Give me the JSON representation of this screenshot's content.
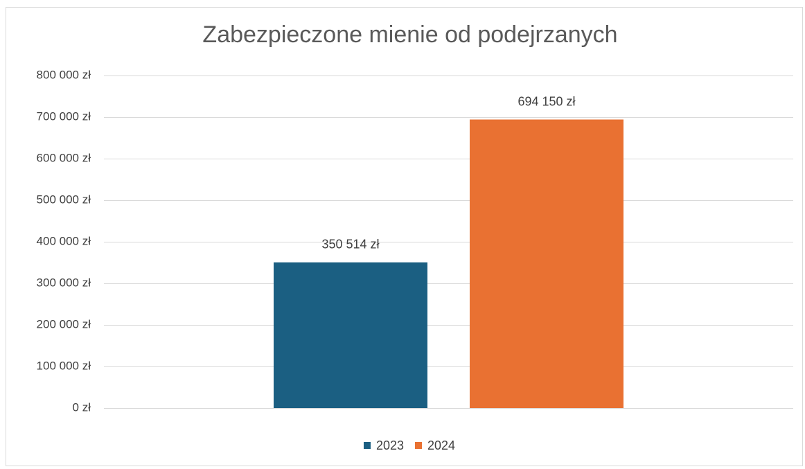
{
  "chart_data": {
    "type": "bar",
    "title": "Zabezpieczone mienie od podejrzanych",
    "categories": [
      null
    ],
    "series": [
      {
        "name": "2023",
        "color": "#1b5f82",
        "values": [
          350514
        ],
        "value_labels": [
          "350 514 zł"
        ]
      },
      {
        "name": "2024",
        "color": "#e97132",
        "values": [
          694150
        ],
        "value_labels": [
          "694 150 zł"
        ]
      }
    ],
    "ylim": [
      0,
      800000
    ],
    "yticks": [
      {
        "value": 0,
        "label": "0 zł"
      },
      {
        "value": 100000,
        "label": "100 000 zł"
      },
      {
        "value": 200000,
        "label": "200 000 zł"
      },
      {
        "value": 300000,
        "label": "300 000 zł"
      },
      {
        "value": 400000,
        "label": "400 000 zł"
      },
      {
        "value": 500000,
        "label": "500 000 zł"
      },
      {
        "value": 600000,
        "label": "600 000 zł"
      },
      {
        "value": 700000,
        "label": "700 000 zł"
      },
      {
        "value": 800000,
        "label": "800 000 zł"
      }
    ],
    "grid": true,
    "legend": "bottom"
  }
}
